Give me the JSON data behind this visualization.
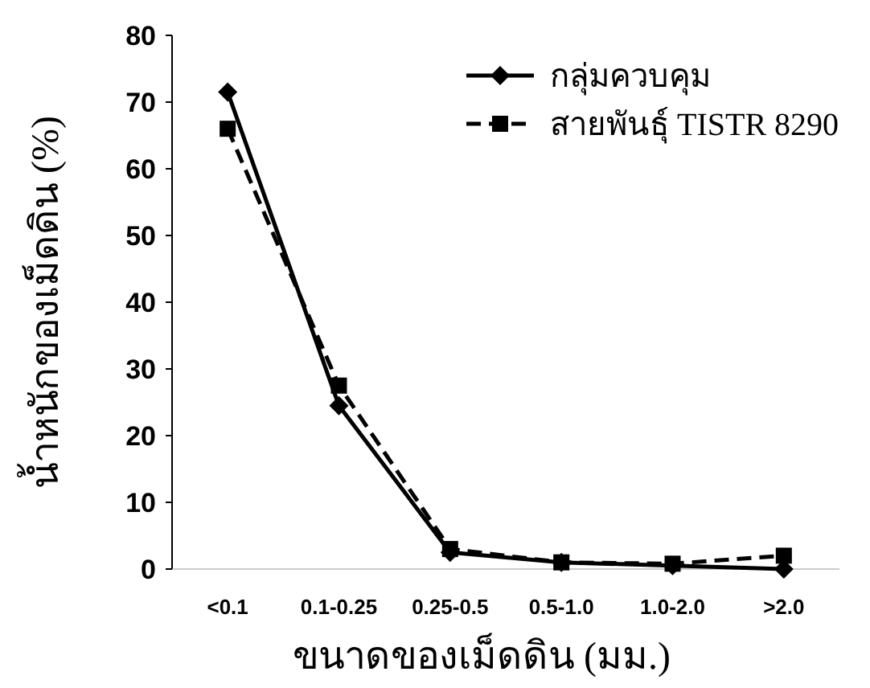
{
  "chart_data": {
    "type": "line",
    "xlabel": "ขนาดของเม็ดดิน (มม.)",
    "ylabel": "น้ำหนักของเม็ดดิน (%)",
    "categories": [
      "<0.1",
      "0.1-0.25",
      "0.25-0.5",
      "0.5-1.0",
      "1.0-2.0",
      ">2.0"
    ],
    "series": [
      {
        "name": "กลุ่มควบคุม",
        "color": "#000000",
        "marker": "diamond",
        "line_style": "solid",
        "values": [
          71.5,
          24.5,
          2.5,
          1,
          0.5,
          0
        ]
      },
      {
        "name": "สายพันธุ์ TISTR 8290",
        "color": "#000000",
        "marker": "square",
        "line_style": "dashed",
        "values": [
          66,
          27.5,
          3,
          1,
          0.8,
          2
        ]
      }
    ],
    "ylim": [
      0,
      80
    ],
    "yticks": [
      0,
      10,
      20,
      30,
      40,
      50,
      60,
      70,
      80
    ],
    "grid": false,
    "legend": "top right"
  }
}
